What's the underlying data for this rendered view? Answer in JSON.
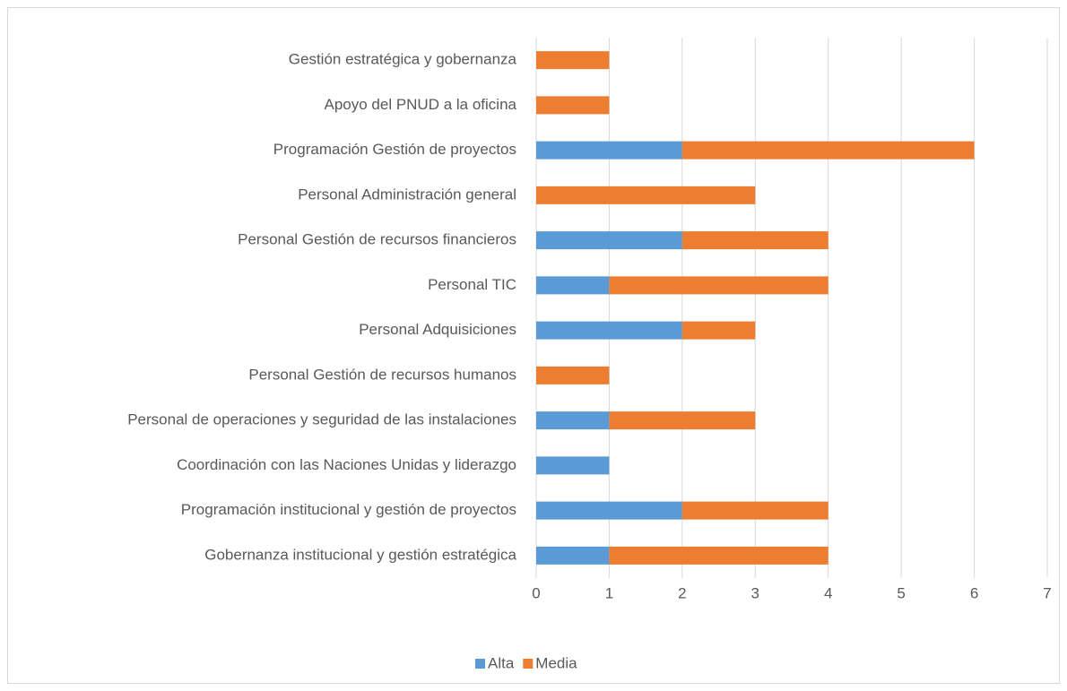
{
  "chart_data": {
    "type": "bar",
    "orientation": "horizontal",
    "stacked": true,
    "categories": [
      "Gestión estratégica y gobernanza",
      "Apoyo del PNUD a la oficina",
      "Programación Gestión de proyectos",
      "Personal Administración general",
      "Personal Gestión de recursos financieros",
      "Personal TIC",
      "Personal Adquisiciones",
      "Personal Gestión de recursos humanos",
      "Personal de operaciones y seguridad de las instalaciones",
      "Coordinación con las Naciones Unidas y liderazgo",
      "Programación institucional y gestión de proyectos",
      "Gobernanza institucional y gestión estratégica"
    ],
    "series": [
      {
        "name": "Alta",
        "color": "#5b9bd5",
        "values": [
          0,
          0,
          2,
          0,
          2,
          1,
          2,
          0,
          1,
          1,
          2,
          1
        ]
      },
      {
        "name": "Media",
        "color": "#ed7d31",
        "values": [
          1,
          1,
          4,
          3,
          2,
          3,
          1,
          1,
          2,
          0,
          2,
          3
        ]
      }
    ],
    "xlim": [
      0,
      7
    ],
    "xticks": [
      0,
      1,
      2,
      3,
      4,
      5,
      6,
      7
    ],
    "grid": true,
    "legend": "bottom"
  }
}
